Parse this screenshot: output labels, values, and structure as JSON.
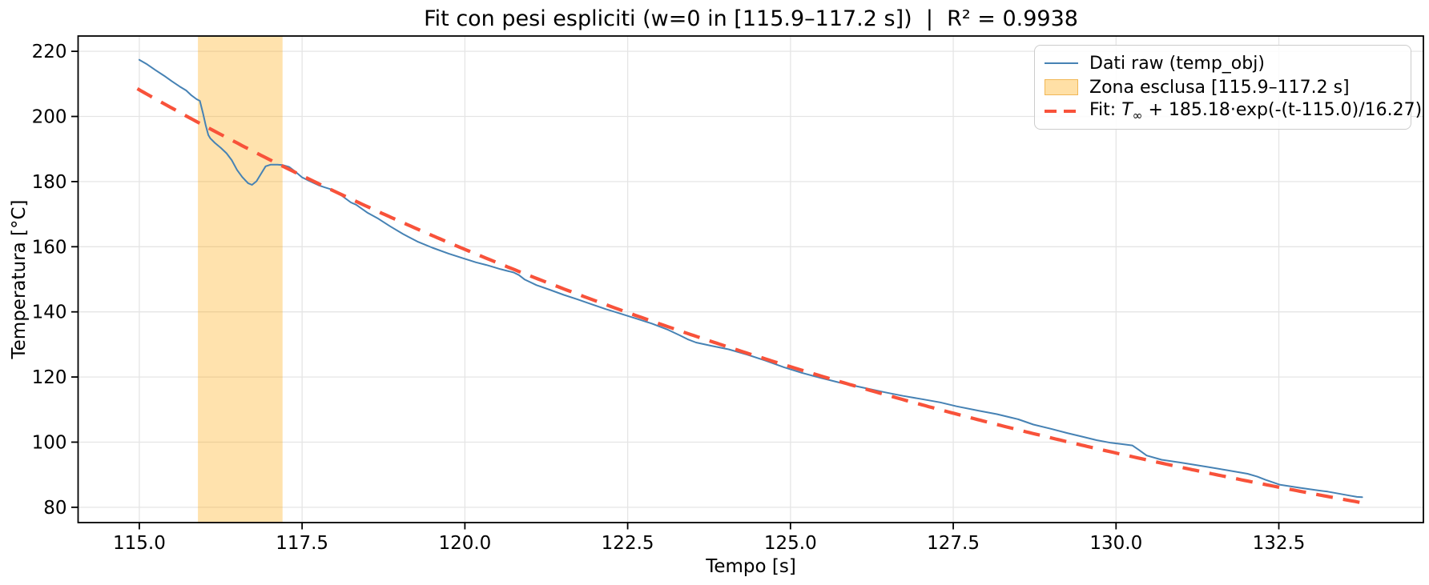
{
  "title": "Fit con pesi espliciti (w=0 in [115.9–117.2 s])  |  R² = 0.9938",
  "legend": {
    "raw_label": "Dati raw (temp_obj)",
    "zone_label": "Zona esclusa [115.9–117.2 s]",
    "fit_prefix": "Fit: ",
    "fit_T": "T",
    "fit_sub": "∞",
    "fit_rest": " + 185.18·exp(-(t-115.0)/16.27)"
  },
  "colors": {
    "raw_line": "#4682b4",
    "fit_line": "#f8523a",
    "excluded_zone": "#ffa500",
    "excluded_zone_opacity": 0.32,
    "grid": "#e5e5e5",
    "spine": "#000000"
  },
  "chart_data": {
    "type": "line",
    "title": "Fit con pesi espliciti (w=0 in [115.9–117.2 s])  |  R² = 0.9938",
    "xlabel": "Tempo [s]",
    "ylabel": "Temperatura [°C]",
    "xlim": [
      114.06,
      134.72
    ],
    "ylim": [
      75.3,
      224.7
    ],
    "grid": true,
    "legend_position": "upper right",
    "xticks": {
      "values": [
        115.0,
        117.5,
        120.0,
        122.5,
        125.0,
        127.5,
        130.0,
        132.5
      ],
      "labels": [
        "115.0",
        "117.5",
        "120.0",
        "122.5",
        "125.0",
        "127.5",
        "130.0",
        "132.5"
      ]
    },
    "yticks": {
      "values": [
        80,
        100,
        120,
        140,
        160,
        180,
        200,
        220
      ],
      "labels": [
        "80",
        "100",
        "120",
        "140",
        "160",
        "180",
        "200",
        "220"
      ]
    },
    "excluded_zone": {
      "t_start": 115.9,
      "t_end": 117.2
    },
    "fit_params": {
      "T_inf_est": 23.0,
      "amplitude": 185.18,
      "t0": 115.0,
      "tau": 16.27,
      "r_squared": 0.9938,
      "draw_range": [
        114.97,
        133.78
      ]
    },
    "series": [
      {
        "name": "Dati raw (temp_obj)",
        "type": "line",
        "points": [
          [
            115.0,
            217.4
          ],
          [
            115.12,
            216.0
          ],
          [
            115.25,
            214.2
          ],
          [
            115.38,
            212.5
          ],
          [
            115.5,
            210.8
          ],
          [
            115.62,
            209.2
          ],
          [
            115.72,
            208.0
          ],
          [
            115.8,
            206.5
          ],
          [
            115.88,
            205.3
          ],
          [
            115.93,
            204.8
          ],
          [
            115.98,
            200.8
          ],
          [
            116.02,
            197.3
          ],
          [
            116.06,
            194.3
          ],
          [
            116.09,
            193.3
          ],
          [
            116.16,
            191.9
          ],
          [
            116.25,
            190.4
          ],
          [
            116.34,
            188.7
          ],
          [
            116.42,
            186.6
          ],
          [
            116.5,
            183.6
          ],
          [
            116.58,
            181.4
          ],
          [
            116.67,
            179.5
          ],
          [
            116.73,
            179.0
          ],
          [
            116.8,
            180.1
          ],
          [
            116.87,
            182.4
          ],
          [
            116.94,
            184.7
          ],
          [
            117.02,
            185.2
          ],
          [
            117.12,
            185.2
          ],
          [
            117.2,
            185.1
          ],
          [
            117.3,
            184.5
          ],
          [
            117.4,
            183.0
          ],
          [
            117.5,
            181.3
          ],
          [
            117.62,
            180.1
          ],
          [
            117.75,
            178.9
          ],
          [
            117.85,
            178.2
          ],
          [
            117.95,
            177.6
          ],
          [
            118.1,
            175.8
          ],
          [
            118.25,
            173.6
          ],
          [
            118.33,
            172.9
          ],
          [
            118.5,
            170.5
          ],
          [
            118.67,
            168.6
          ],
          [
            118.85,
            166.3
          ],
          [
            119.05,
            163.9
          ],
          [
            119.27,
            161.6
          ],
          [
            119.5,
            159.7
          ],
          [
            119.75,
            157.9
          ],
          [
            120.0,
            156.3
          ],
          [
            120.17,
            155.2
          ],
          [
            120.33,
            154.4
          ],
          [
            120.55,
            153.1
          ],
          [
            120.75,
            152.1
          ],
          [
            120.83,
            151.3
          ],
          [
            120.92,
            149.9
          ],
          [
            121.1,
            148.2
          ],
          [
            121.3,
            146.8
          ],
          [
            121.52,
            145.2
          ],
          [
            121.72,
            143.9
          ],
          [
            121.95,
            142.3
          ],
          [
            122.17,
            140.8
          ],
          [
            122.38,
            139.5
          ],
          [
            122.62,
            138.0
          ],
          [
            122.87,
            136.4
          ],
          [
            123.12,
            134.5
          ],
          [
            123.3,
            132.8
          ],
          [
            123.42,
            131.6
          ],
          [
            123.55,
            130.6
          ],
          [
            123.8,
            129.5
          ],
          [
            124.05,
            128.5
          ],
          [
            124.33,
            126.9
          ],
          [
            124.62,
            125.0
          ],
          [
            124.9,
            123.0
          ],
          [
            125.17,
            121.3
          ],
          [
            125.45,
            119.8
          ],
          [
            125.75,
            118.3
          ],
          [
            126.1,
            116.8
          ],
          [
            126.45,
            115.3
          ],
          [
            126.73,
            114.2
          ],
          [
            127.05,
            113.1
          ],
          [
            127.3,
            112.2
          ],
          [
            127.55,
            111.0
          ],
          [
            127.9,
            109.6
          ],
          [
            128.17,
            108.6
          ],
          [
            128.4,
            107.5
          ],
          [
            128.5,
            107.0
          ],
          [
            128.73,
            105.4
          ],
          [
            129.0,
            104.1
          ],
          [
            129.25,
            102.8
          ],
          [
            129.5,
            101.6
          ],
          [
            129.7,
            100.6
          ],
          [
            129.92,
            99.8
          ],
          [
            130.12,
            99.3
          ],
          [
            130.25,
            99.0
          ],
          [
            130.35,
            97.6
          ],
          [
            130.47,
            95.9
          ],
          [
            130.7,
            94.6
          ],
          [
            131.0,
            93.7
          ],
          [
            131.4,
            92.4
          ],
          [
            131.7,
            91.4
          ],
          [
            132.02,
            90.3
          ],
          [
            132.17,
            89.4
          ],
          [
            132.3,
            88.4
          ],
          [
            132.52,
            86.9
          ],
          [
            132.82,
            86.0
          ],
          [
            133.1,
            85.2
          ],
          [
            133.25,
            84.8
          ],
          [
            133.42,
            84.2
          ],
          [
            133.58,
            83.6
          ],
          [
            133.7,
            83.2
          ],
          [
            133.78,
            83.1
          ]
        ]
      },
      {
        "name": "Fit: T∞ + 185.18·exp(-(t-115.0)/16.27)",
        "type": "exp_decay_from_fit_params"
      }
    ]
  }
}
